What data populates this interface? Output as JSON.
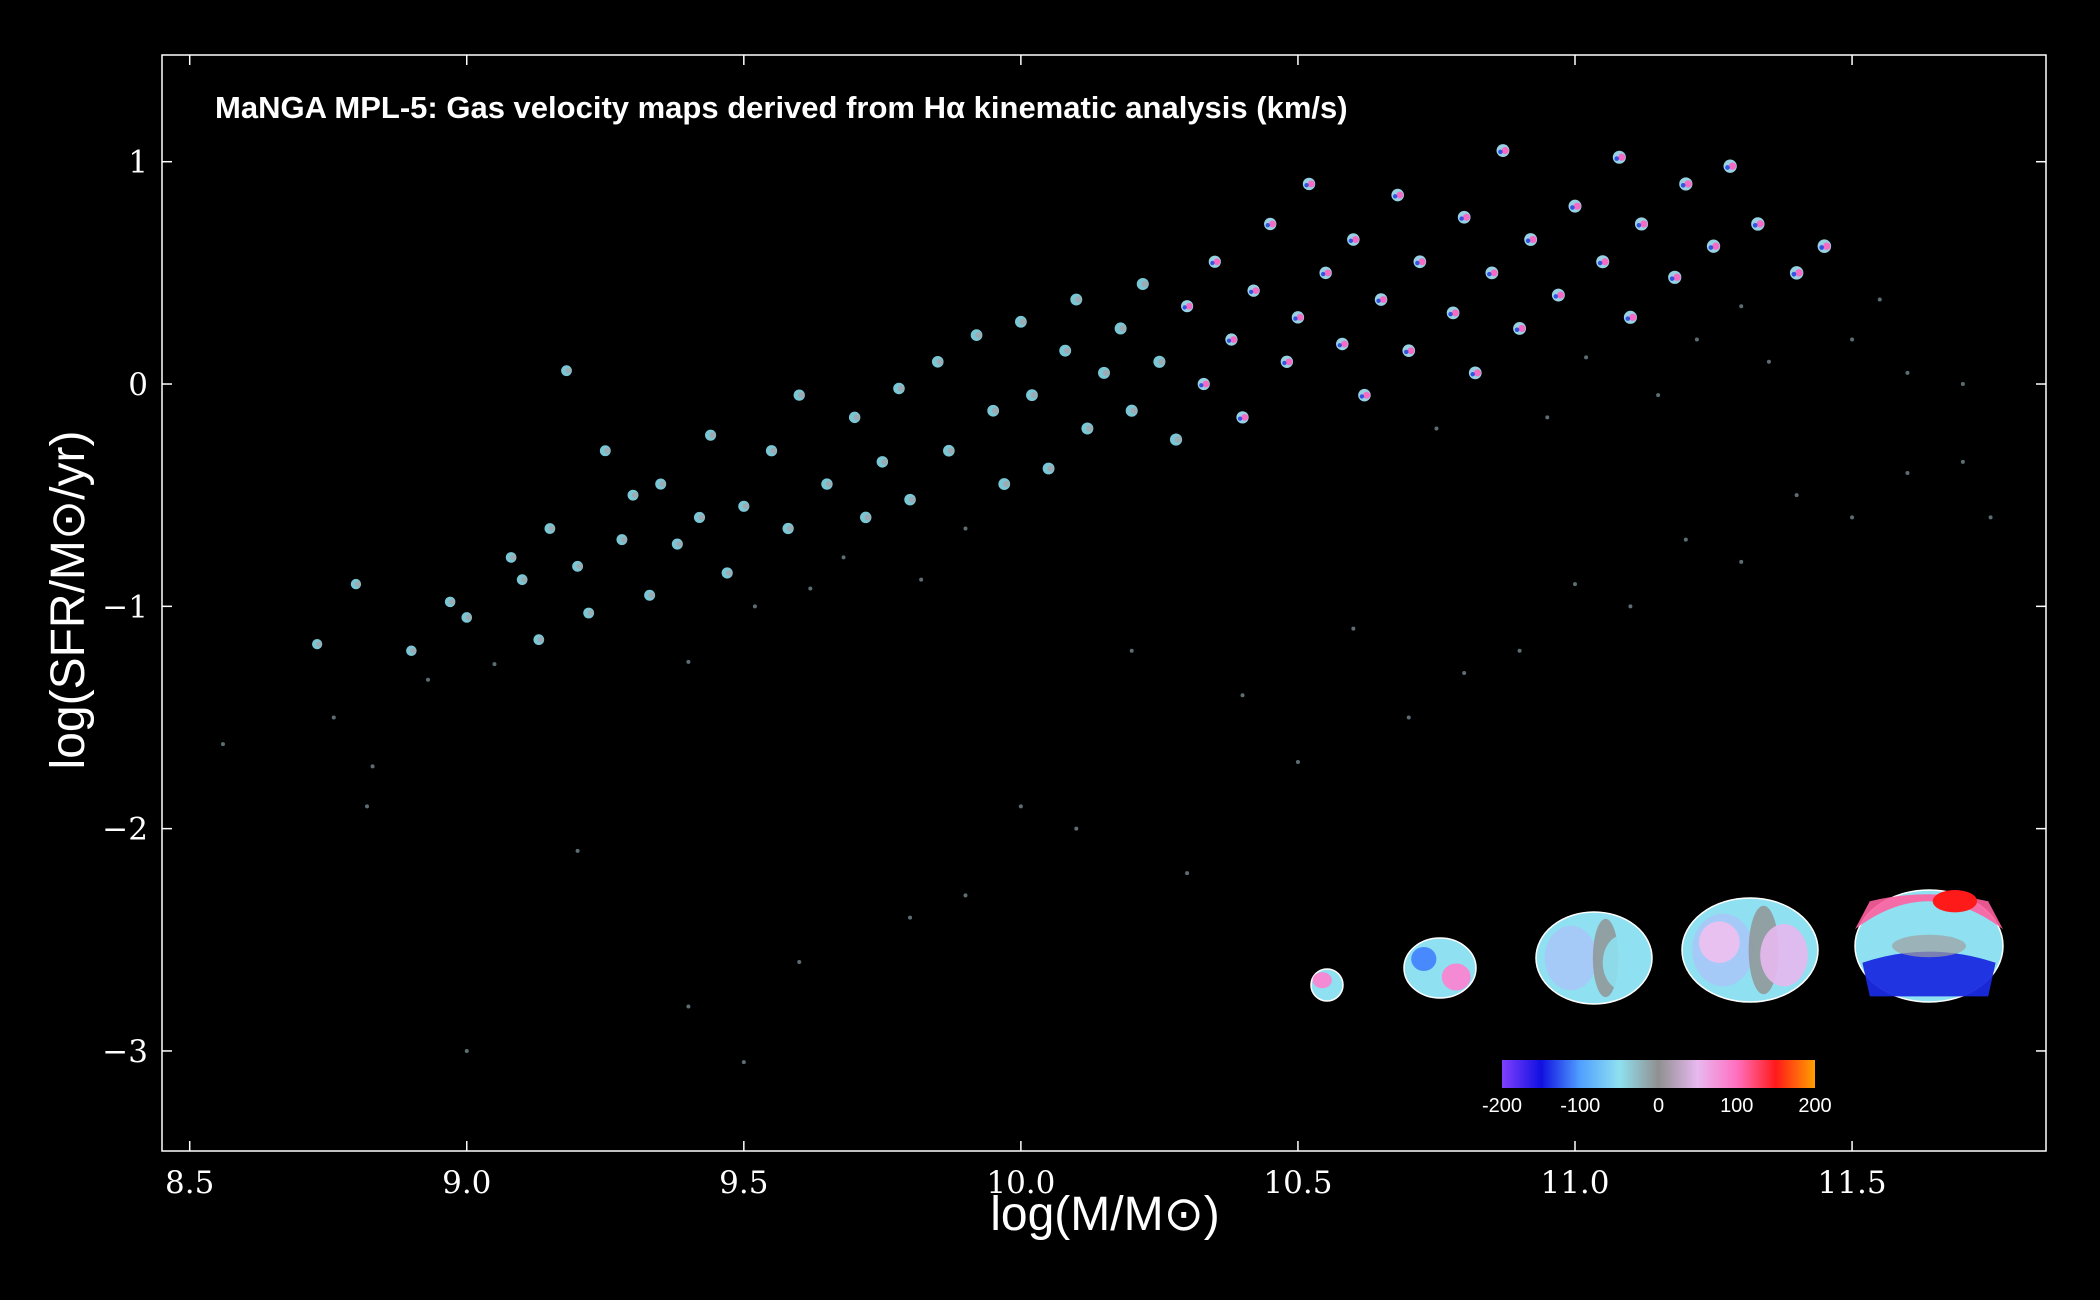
{
  "chart_data": {
    "type": "scatter",
    "title": "MaNGA MPL-5: Gas velocity maps derived from Hα kinematic analysis (km/s)",
    "xlabel": "log(M/M⊙)",
    "ylabel": "log(SFR/M⊙/yr)",
    "xlim": [
      8.45,
      11.85
    ],
    "ylim": [
      -3.45,
      1.48
    ],
    "xticks": [
      8.5,
      9.0,
      9.5,
      10.0,
      10.5,
      11.0,
      11.5
    ],
    "xtick_labels": [
      "8.5",
      "9.0",
      "9.5",
      "10.0",
      "10.5",
      "11.0",
      "11.5"
    ],
    "yticks": [
      1,
      0,
      -1,
      -2,
      -3
    ],
    "ytick_labels": [
      "1",
      "0",
      "−1",
      "−2",
      "−3"
    ],
    "grid": false,
    "background": "#000000",
    "points": [
      [
        8.56,
        -1.62
      ],
      [
        8.73,
        -1.17
      ],
      [
        8.76,
        -1.5
      ],
      [
        8.8,
        -0.9
      ],
      [
        8.83,
        -1.72
      ],
      [
        8.82,
        -1.9
      ],
      [
        8.9,
        -1.2
      ],
      [
        8.93,
        -1.33
      ],
      [
        8.97,
        -0.98
      ],
      [
        9.0,
        -1.05
      ],
      [
        9.05,
        -1.26
      ],
      [
        9.08,
        -0.78
      ],
      [
        9.1,
        -0.88
      ],
      [
        9.13,
        -1.15
      ],
      [
        9.15,
        -0.65
      ],
      [
        9.18,
        0.06
      ],
      [
        9.2,
        -0.82
      ],
      [
        9.22,
        -1.03
      ],
      [
        9.25,
        -0.3
      ],
      [
        9.28,
        -0.7
      ],
      [
        9.3,
        -0.5
      ],
      [
        9.33,
        -0.95
      ],
      [
        9.35,
        -0.45
      ],
      [
        9.38,
        -0.72
      ],
      [
        9.4,
        -1.25
      ],
      [
        9.42,
        -0.6
      ],
      [
        9.44,
        -0.23
      ],
      [
        9.47,
        -0.85
      ],
      [
        9.5,
        -0.55
      ],
      [
        9.52,
        -1.0
      ],
      [
        9.55,
        -0.3
      ],
      [
        9.58,
        -0.65
      ],
      [
        9.6,
        -0.05
      ],
      [
        9.62,
        -0.92
      ],
      [
        9.65,
        -0.45
      ],
      [
        9.68,
        -0.78
      ],
      [
        9.7,
        -0.15
      ],
      [
        9.72,
        -0.6
      ],
      [
        9.75,
        -0.35
      ],
      [
        9.78,
        -0.02
      ],
      [
        9.8,
        -0.52
      ],
      [
        9.82,
        -0.88
      ],
      [
        9.85,
        0.1
      ],
      [
        9.87,
        -0.3
      ],
      [
        9.9,
        -0.65
      ],
      [
        9.92,
        0.22
      ],
      [
        9.95,
        -0.12
      ],
      [
        9.97,
        -0.45
      ],
      [
        10.0,
        0.28
      ],
      [
        10.02,
        -0.05
      ],
      [
        10.05,
        -0.38
      ],
      [
        10.08,
        0.15
      ],
      [
        10.1,
        0.38
      ],
      [
        10.12,
        -0.2
      ],
      [
        10.15,
        0.05
      ],
      [
        10.18,
        0.25
      ],
      [
        10.2,
        -0.12
      ],
      [
        10.22,
        0.45
      ],
      [
        10.25,
        0.1
      ],
      [
        10.28,
        -0.25
      ],
      [
        10.3,
        0.35
      ],
      [
        10.33,
        0.0
      ],
      [
        10.35,
        0.55
      ],
      [
        10.38,
        0.2
      ],
      [
        10.4,
        -0.15
      ],
      [
        10.42,
        0.42
      ],
      [
        10.45,
        0.72
      ],
      [
        10.48,
        0.1
      ],
      [
        10.5,
        0.3
      ],
      [
        10.52,
        0.9
      ],
      [
        10.55,
        0.5
      ],
      [
        10.58,
        0.18
      ],
      [
        10.6,
        0.65
      ],
      [
        10.62,
        -0.05
      ],
      [
        10.65,
        0.38
      ],
      [
        10.68,
        0.85
      ],
      [
        10.7,
        0.15
      ],
      [
        10.72,
        0.55
      ],
      [
        10.75,
        -0.2
      ],
      [
        10.78,
        0.32
      ],
      [
        10.8,
        0.75
      ],
      [
        10.82,
        0.05
      ],
      [
        10.85,
        0.5
      ],
      [
        10.87,
        1.05
      ],
      [
        10.9,
        0.25
      ],
      [
        10.92,
        0.65
      ],
      [
        10.95,
        -0.15
      ],
      [
        10.97,
        0.4
      ],
      [
        11.0,
        0.8
      ],
      [
        11.02,
        0.12
      ],
      [
        11.05,
        0.55
      ],
      [
        11.08,
        1.02
      ],
      [
        11.1,
        0.3
      ],
      [
        11.12,
        0.72
      ],
      [
        11.15,
        -0.05
      ],
      [
        11.18,
        0.48
      ],
      [
        11.2,
        0.9
      ],
      [
        11.22,
        0.2
      ],
      [
        11.25,
        0.62
      ],
      [
        11.28,
        0.98
      ],
      [
        11.3,
        0.35
      ],
      [
        11.33,
        0.72
      ],
      [
        11.35,
        0.1
      ],
      [
        11.4,
        0.5
      ],
      [
        11.45,
        0.62
      ],
      [
        11.5,
        0.2
      ],
      [
        11.55,
        0.38
      ],
      [
        11.6,
        0.05
      ],
      [
        11.7,
        0.0
      ],
      [
        10.2,
        -1.2
      ],
      [
        10.4,
        -1.4
      ],
      [
        10.6,
        -1.1
      ],
      [
        10.8,
        -1.3
      ],
      [
        11.0,
        -0.9
      ],
      [
        11.2,
        -0.7
      ],
      [
        11.4,
        -0.5
      ],
      [
        11.6,
        -0.4
      ],
      [
        10.0,
        -1.9
      ],
      [
        10.3,
        -2.2
      ],
      [
        10.5,
        -1.7
      ],
      [
        10.7,
        -1.5
      ],
      [
        10.9,
        -1.2
      ],
      [
        11.1,
        -1.0
      ],
      [
        11.3,
        -0.8
      ],
      [
        11.5,
        -0.6
      ],
      [
        9.8,
        -2.4
      ],
      [
        10.1,
        -2.0
      ],
      [
        9.6,
        -2.6
      ],
      [
        9.9,
        -2.3
      ],
      [
        9.4,
        -2.8
      ],
      [
        9.2,
        -2.1
      ],
      [
        9.0,
        -3.0
      ],
      [
        9.5,
        -3.05
      ],
      [
        11.7,
        -0.35
      ],
      [
        11.75,
        -0.6
      ]
    ],
    "annotations": {
      "example_maps_count": 5,
      "colorbar": {
        "ticks": [
          -200,
          -100,
          0,
          100,
          200
        ],
        "tick_labels": [
          "-200",
          "-100",
          "0",
          "100",
          "200"
        ],
        "range": [
          -200,
          200
        ],
        "colors": [
          "#8040ff",
          "#1010e0",
          "#50a0ff",
          "#8fe0f0",
          "#909090",
          "#e8b8f0",
          "#ff70c0",
          "#ff1a1a",
          "#ffa000"
        ]
      }
    }
  }
}
